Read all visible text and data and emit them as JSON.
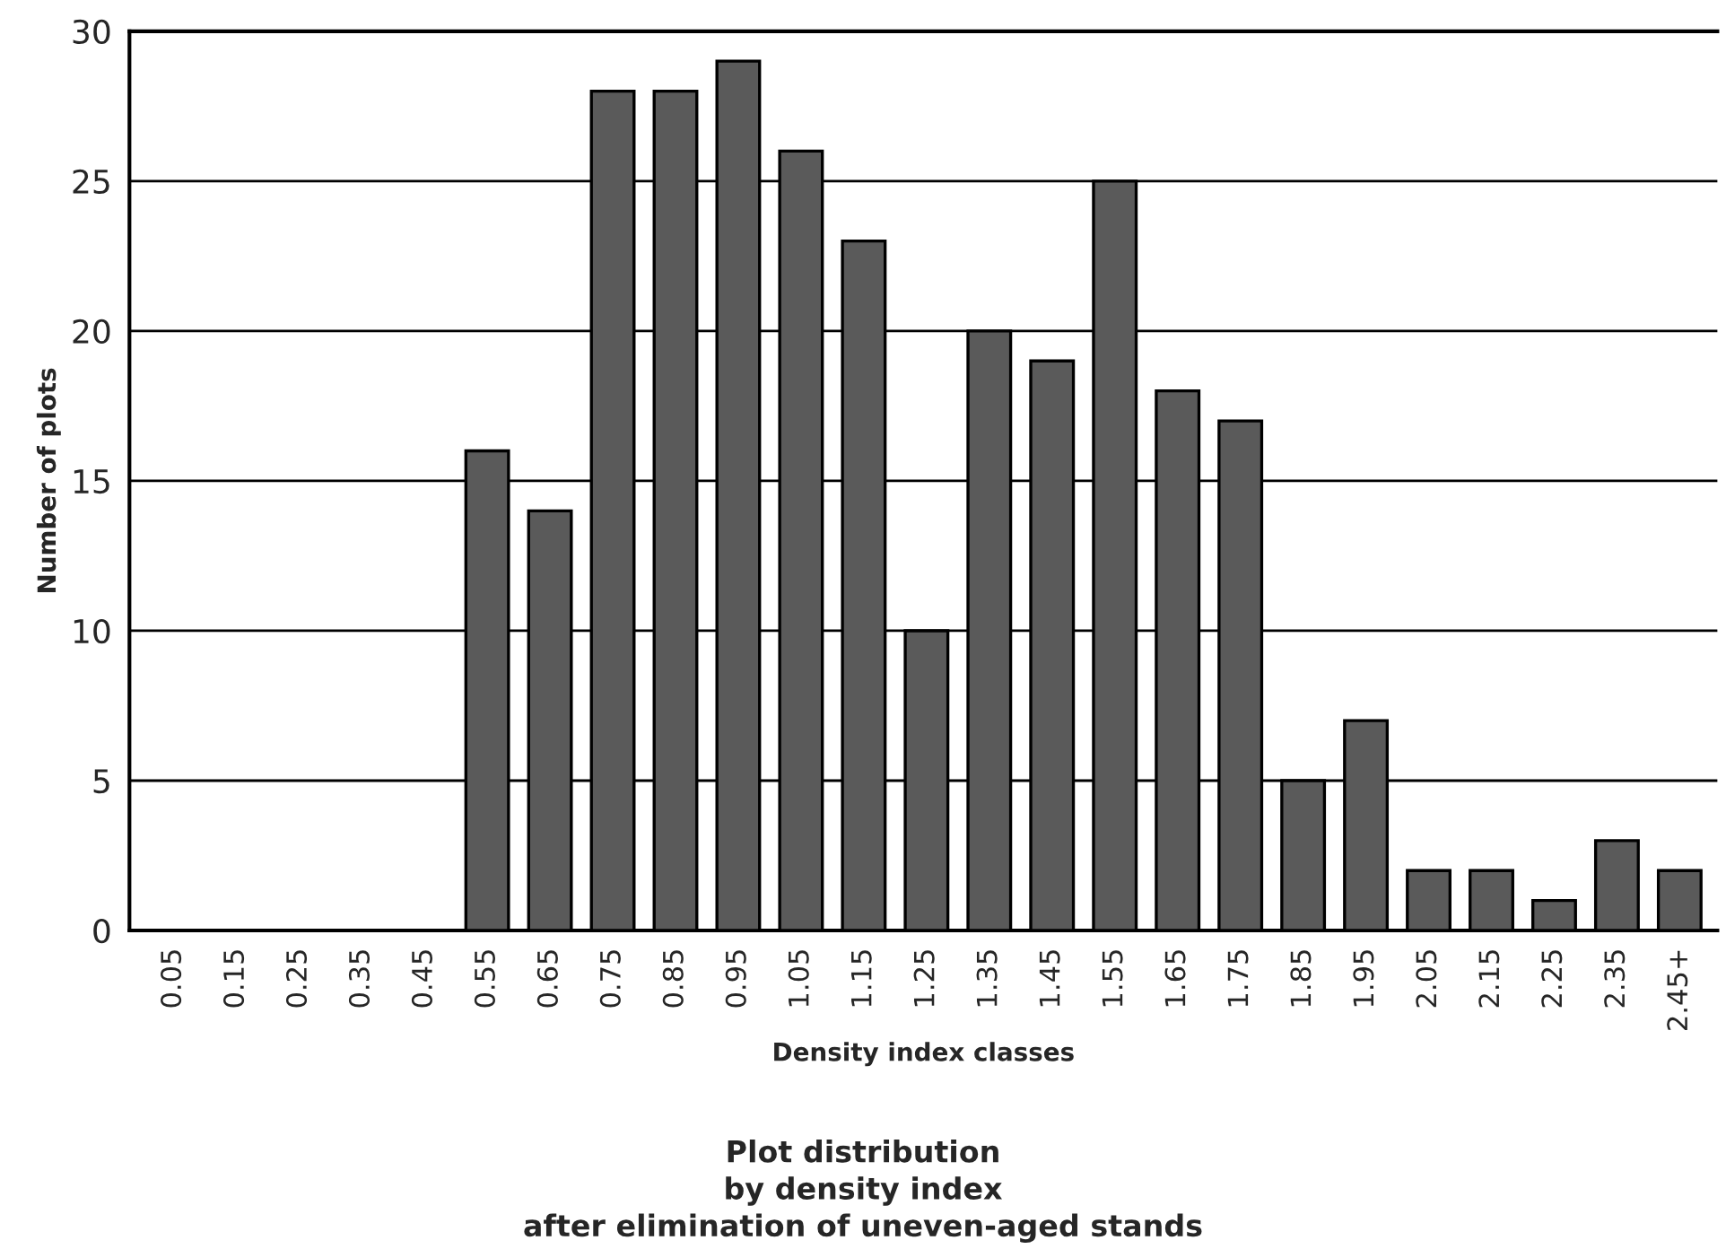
{
  "chart_data": {
    "type": "bar",
    "title": "Plot distribution\nby density index\nafter elimination of uneven-aged stands",
    "xlabel": "Density index classes",
    "ylabel": "Number of plots",
    "categories": [
      "0.05",
      "0.15",
      "0.25",
      "0.35",
      "0.45",
      "0.55",
      "0.65",
      "0.75",
      "0.85",
      "0.95",
      "1.05",
      "1.15",
      "1.25",
      "1.35",
      "1.45",
      "1.55",
      "1.65",
      "1.75",
      "1.85",
      "1.95",
      "2.05",
      "2.15",
      "2.25",
      "2.35",
      "2.45+"
    ],
    "values": [
      0,
      0,
      0,
      0,
      0,
      16,
      14,
      28,
      28,
      29,
      26,
      23,
      10,
      20,
      19,
      25,
      18,
      17,
      5,
      7,
      2,
      2,
      1,
      3,
      2
    ],
    "color": "#5a5a5a",
    "ylim": [
      0,
      30
    ],
    "yticks": [
      0,
      5,
      10,
      15,
      20,
      25,
      30
    ],
    "grid": "y"
  }
}
